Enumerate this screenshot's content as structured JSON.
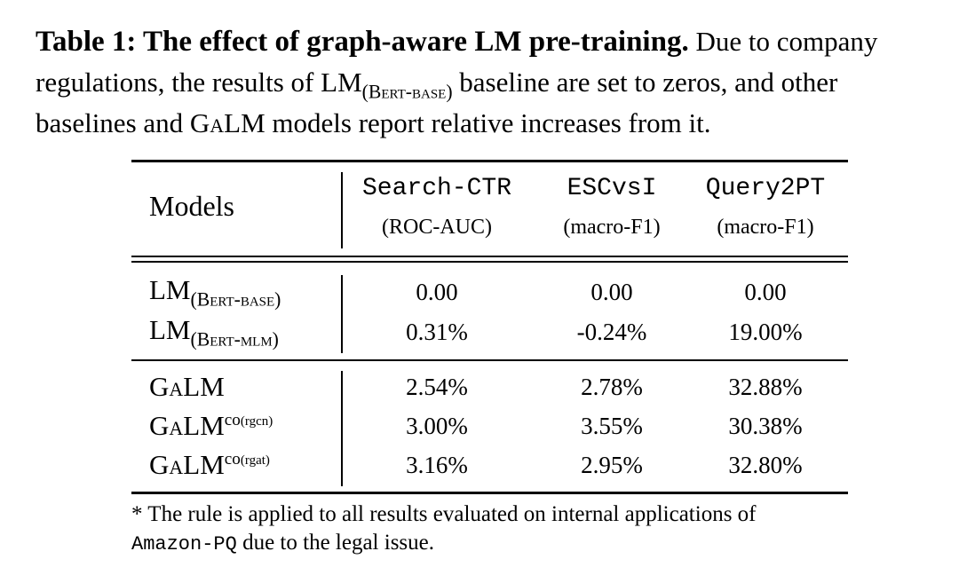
{
  "caption": {
    "lead": "Table 1: The effect of graph-aware LM pre-training.",
    "text_1": " Due to company regulations, the results of ",
    "lm": "LM",
    "bert_base": "(Bert-base)",
    "text_2": " baseline are set to zeros, and other baselines and ",
    "galm": "GaLM",
    "text_3": " models report relative increases from it."
  },
  "table": {
    "models_header": "Models",
    "columns": [
      {
        "title": "Search-CTR",
        "metric": "(ROC-AUC)"
      },
      {
        "title": "ESCvsI",
        "metric": "(macro-F1)"
      },
      {
        "title": "Query2PT",
        "metric": "(macro-F1)"
      }
    ],
    "rows": [
      {
        "model": "LM",
        "sub": "(Bert-base)",
        "sup": "",
        "values": [
          "0.00",
          "0.00",
          "0.00"
        ]
      },
      {
        "model": "LM",
        "sub": "(Bert-mlm)",
        "sup": "",
        "values": [
          "0.31%",
          "-0.24%",
          "19.00%"
        ]
      },
      {
        "model": "GaLM",
        "sub": "",
        "sup": "",
        "values": [
          "2.54%",
          "2.78%",
          "32.88%"
        ]
      },
      {
        "model": "GaLM",
        "sub": "",
        "sup": "co",
        "sup_small": "(rgcn)",
        "values": [
          "3.00%",
          "3.55%",
          "30.38%"
        ]
      },
      {
        "model": "GaLM",
        "sub": "",
        "sup": "co",
        "sup_small": "(rgat)",
        "values": [
          "3.16%",
          "2.95%",
          "32.80%"
        ]
      }
    ]
  },
  "footnote": {
    "text_1": "* The rule is applied to all results evaluated on internal applications of",
    "mono": "Amazon-PQ",
    "text_2": " due to the legal issue."
  }
}
